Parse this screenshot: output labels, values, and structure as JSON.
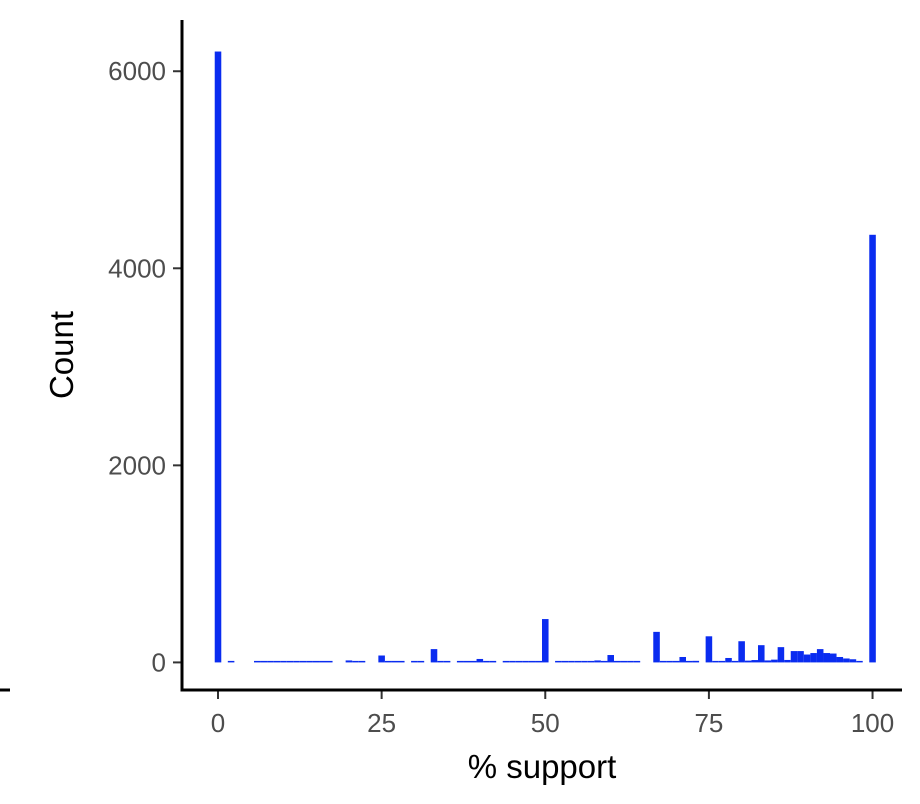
{
  "chart_data": {
    "type": "bar",
    "xlabel": "% support",
    "ylabel": "Count",
    "xlim": [
      -5.5,
      104.5
    ],
    "ylim": [
      -280,
      6520
    ],
    "x_ticks": [
      0,
      25,
      50,
      75,
      100
    ],
    "x_tick_labels": [
      "0",
      "25",
      "50",
      "75",
      "100"
    ],
    "y_ticks": [
      0,
      2000,
      4000,
      6000
    ],
    "y_tick_labels": [
      "0",
      "2000",
      "4000",
      "6000"
    ],
    "bin_width": 1,
    "bar_color": "#0a2cf0",
    "grid": false,
    "legend": "none",
    "bars": [
      {
        "x": 0,
        "y": 6200
      },
      {
        "x": 2,
        "y": 8
      },
      {
        "x": 6,
        "y": 6
      },
      {
        "x": 7,
        "y": 6
      },
      {
        "x": 8,
        "y": 6
      },
      {
        "x": 9,
        "y": 6
      },
      {
        "x": 10,
        "y": 6
      },
      {
        "x": 11,
        "y": 6
      },
      {
        "x": 12,
        "y": 8
      },
      {
        "x": 13,
        "y": 6
      },
      {
        "x": 14,
        "y": 10
      },
      {
        "x": 15,
        "y": 8
      },
      {
        "x": 16,
        "y": 10
      },
      {
        "x": 17,
        "y": 6
      },
      {
        "x": 20,
        "y": 20
      },
      {
        "x": 21,
        "y": 8
      },
      {
        "x": 22,
        "y": 6
      },
      {
        "x": 25,
        "y": 70
      },
      {
        "x": 26,
        "y": 8
      },
      {
        "x": 27,
        "y": 6
      },
      {
        "x": 28,
        "y": 8
      },
      {
        "x": 30,
        "y": 8
      },
      {
        "x": 31,
        "y": 6
      },
      {
        "x": 33,
        "y": 135
      },
      {
        "x": 34,
        "y": 8
      },
      {
        "x": 35,
        "y": 6
      },
      {
        "x": 37,
        "y": 8
      },
      {
        "x": 38,
        "y": 10
      },
      {
        "x": 39,
        "y": 6
      },
      {
        "x": 40,
        "y": 35
      },
      {
        "x": 41,
        "y": 10
      },
      {
        "x": 42,
        "y": 6
      },
      {
        "x": 44,
        "y": 8
      },
      {
        "x": 45,
        "y": 8
      },
      {
        "x": 46,
        "y": 6
      },
      {
        "x": 47,
        "y": 8
      },
      {
        "x": 48,
        "y": 6
      },
      {
        "x": 49,
        "y": 8
      },
      {
        "x": 50,
        "y": 440
      },
      {
        "x": 52,
        "y": 8
      },
      {
        "x": 53,
        "y": 8
      },
      {
        "x": 54,
        "y": 6
      },
      {
        "x": 55,
        "y": 12
      },
      {
        "x": 56,
        "y": 8
      },
      {
        "x": 57,
        "y": 12
      },
      {
        "x": 58,
        "y": 20
      },
      {
        "x": 59,
        "y": 8
      },
      {
        "x": 60,
        "y": 75
      },
      {
        "x": 61,
        "y": 8
      },
      {
        "x": 62,
        "y": 12
      },
      {
        "x": 63,
        "y": 10
      },
      {
        "x": 64,
        "y": 8
      },
      {
        "x": 67,
        "y": 310
      },
      {
        "x": 68,
        "y": 10
      },
      {
        "x": 69,
        "y": 12
      },
      {
        "x": 70,
        "y": 14
      },
      {
        "x": 71,
        "y": 55
      },
      {
        "x": 72,
        "y": 12
      },
      {
        "x": 73,
        "y": 16
      },
      {
        "x": 75,
        "y": 265
      },
      {
        "x": 76,
        "y": 12
      },
      {
        "x": 77,
        "y": 14
      },
      {
        "x": 78,
        "y": 45
      },
      {
        "x": 79,
        "y": 14
      },
      {
        "x": 80,
        "y": 215
      },
      {
        "x": 81,
        "y": 18
      },
      {
        "x": 82,
        "y": 24
      },
      {
        "x": 83,
        "y": 175
      },
      {
        "x": 84,
        "y": 20
      },
      {
        "x": 85,
        "y": 28
      },
      {
        "x": 86,
        "y": 155
      },
      {
        "x": 87,
        "y": 25
      },
      {
        "x": 88,
        "y": 115
      },
      {
        "x": 89,
        "y": 115
      },
      {
        "x": 90,
        "y": 80
      },
      {
        "x": 91,
        "y": 95
      },
      {
        "x": 92,
        "y": 135
      },
      {
        "x": 93,
        "y": 95
      },
      {
        "x": 94,
        "y": 90
      },
      {
        "x": 95,
        "y": 55
      },
      {
        "x": 96,
        "y": 40
      },
      {
        "x": 97,
        "y": 32
      },
      {
        "x": 98,
        "y": 10
      },
      {
        "x": 100,
        "y": 4340
      }
    ]
  }
}
